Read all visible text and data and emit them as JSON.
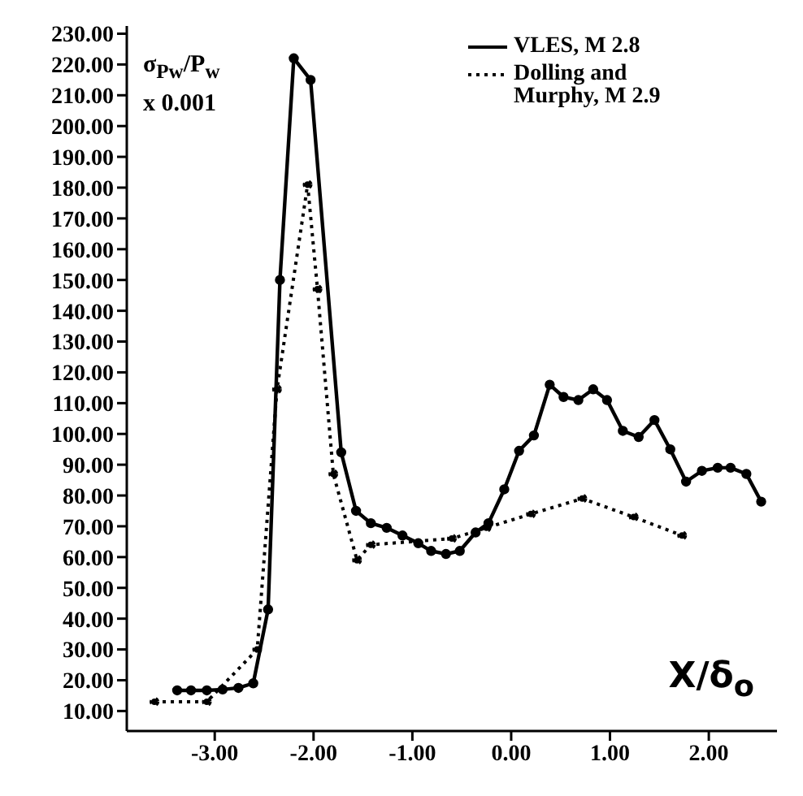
{
  "chart_data": {
    "type": "line",
    "xlabel": "X/δ$_{o}$",
    "ylabel": "σ$_{Pw}$/P$_{w}$ x 0.001",
    "xlim": [
      -3.89,
      2.69
    ],
    "xticks": [
      {
        "value": -3,
        "label": "-3.00"
      },
      {
        "value": -2,
        "label": "-2.00"
      },
      {
        "value": -1,
        "label": "-1.00"
      },
      {
        "value": 0,
        "label": "0.00"
      },
      {
        "value": 1,
        "label": "1.00"
      },
      {
        "value": 2,
        "label": "2.00"
      }
    ],
    "ylim": [
      3.5,
      232.5
    ],
    "yticks": [
      {
        "value": 10,
        "label": "10.00"
      },
      {
        "value": 20,
        "label": "20.00"
      },
      {
        "value": 30,
        "label": "30.00"
      },
      {
        "value": 40,
        "label": "40.00"
      },
      {
        "value": 50,
        "label": "50.00"
      },
      {
        "value": 60,
        "label": "60.00"
      },
      {
        "value": 70,
        "label": "70.00"
      },
      {
        "value": 80,
        "label": "80.00"
      },
      {
        "value": 90,
        "label": "90.00"
      },
      {
        "value": 100,
        "label": "100.00"
      },
      {
        "value": 110,
        "label": "110.00"
      },
      {
        "value": 120,
        "label": "120.00"
      },
      {
        "value": 130,
        "label": "130.00"
      },
      {
        "value": 140,
        "label": "140.00"
      },
      {
        "value": 150,
        "label": "150.00"
      },
      {
        "value": 160,
        "label": "160.00"
      },
      {
        "value": 170,
        "label": "170.00"
      },
      {
        "value": 180,
        "label": "180.00"
      },
      {
        "value": 190,
        "label": "190.00"
      },
      {
        "value": 200,
        "label": "200.00"
      },
      {
        "value": 210,
        "label": "210.00"
      },
      {
        "value": 220,
        "label": "220.00"
      },
      {
        "value": 230,
        "label": "230.00"
      }
    ],
    "grid": false,
    "legend": "top right",
    "marker": "circle",
    "series": [
      {
        "name": "VLES, M 2.8",
        "color": "#000000",
        "line_style": "solid",
        "x": [
          -3.38,
          -3.24,
          -3.08,
          -2.92,
          -2.76,
          -2.61,
          -2.46,
          -2.34,
          -2.2,
          -2.03,
          -1.72,
          -1.57,
          -1.42,
          -1.26,
          -1.1,
          -0.94,
          -0.81,
          -0.66,
          -0.52,
          -0.36,
          -0.23,
          -0.07,
          0.08,
          0.23,
          0.39,
          0.53,
          0.68,
          0.83,
          0.97,
          1.13,
          1.29,
          1.45,
          1.61,
          1.77,
          1.93,
          2.09,
          2.22,
          2.38,
          2.53
        ],
        "values": [
          16.7,
          16.7,
          16.7,
          17,
          17.5,
          19,
          43,
          150,
          222,
          215,
          94,
          75,
          71,
          69.5,
          67,
          64.5,
          62,
          61,
          62,
          68,
          71,
          82,
          94.5,
          99.5,
          116,
          112,
          111,
          114.5,
          111,
          101,
          99,
          104.5,
          95,
          84.5,
          88,
          89,
          89,
          87,
          78
        ]
      },
      {
        "name": "Dolling and Murphy, M 2.9",
        "color": "#000000",
        "line_style": "dotted",
        "x": [
          -3.61,
          -3.08,
          -2.57,
          -2.37,
          -2.06,
          -1.96,
          -1.8,
          -1.56,
          -1.42,
          -0.6,
          -0.25,
          0.2,
          0.72,
          1.24,
          1.73
        ],
        "values": [
          13,
          13,
          30,
          114.5,
          181,
          147,
          87,
          59,
          64,
          66,
          69.5,
          74,
          79,
          73,
          67
        ]
      }
    ]
  }
}
